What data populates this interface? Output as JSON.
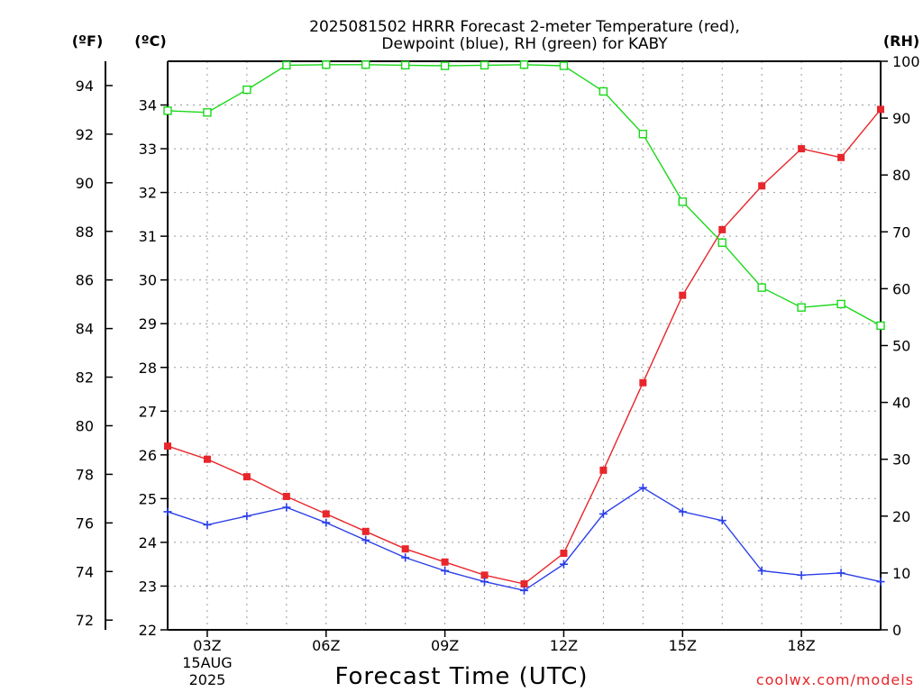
{
  "title_line1": "2025081502 HRRR Forecast 2-meter Temperature (red),",
  "title_line2": "Dewpoint (blue), RH (green) for KABY",
  "credit": "coolwx.com/models",
  "chart_data": {
    "type": "line",
    "title": "2025081502 HRRR Forecast 2-meter Temperature (red), Dewpoint (blue), RH (green) for KABY",
    "xlabel": "Forecast Time (UTC)",
    "x_hours": [
      2,
      3,
      4,
      5,
      6,
      7,
      8,
      9,
      10,
      11,
      12,
      13,
      14,
      15,
      16,
      17,
      18,
      19,
      20
    ],
    "xlim": [
      2,
      20
    ],
    "x_ticks": [
      {
        "hour": 3,
        "label": "03Z",
        "sub1": "15AUG",
        "sub2": "2025"
      },
      {
        "hour": 6,
        "label": "06Z"
      },
      {
        "hour": 9,
        "label": "09Z"
      },
      {
        "hour": 12,
        "label": "12Z"
      },
      {
        "hour": 15,
        "label": "15Z"
      },
      {
        "hour": 18,
        "label": "18Z"
      }
    ],
    "axes": {
      "fahrenheit": {
        "unit_label": "(ºF)",
        "ticks": [
          72,
          74,
          76,
          78,
          80,
          82,
          84,
          86,
          88,
          90,
          92,
          94
        ]
      },
      "celsius": {
        "unit_label": "(ºC)",
        "ticks": [
          22,
          23,
          24,
          25,
          26,
          27,
          28,
          29,
          30,
          31,
          32,
          33,
          34
        ],
        "ylim": [
          22,
          35
        ]
      },
      "rh": {
        "unit_label": "(RH)",
        "ticks": [
          0,
          10,
          20,
          30,
          40,
          50,
          60,
          70,
          80,
          90,
          100
        ],
        "ylim": [
          0,
          100
        ]
      }
    },
    "grid": true,
    "series": [
      {
        "name": "Temperature",
        "axis": "celsius",
        "color": "#e8262b",
        "marker": "filled-square",
        "values": [
          26.2,
          25.9,
          25.5,
          25.05,
          24.65,
          24.25,
          23.85,
          23.55,
          23.25,
          23.05,
          23.75,
          25.65,
          27.65,
          29.65,
          31.15,
          32.15,
          33.0,
          32.8,
          33.9
        ]
      },
      {
        "name": "Dewpoint",
        "axis": "celsius",
        "color": "#2a3ee8",
        "marker": "plus",
        "values": [
          24.7,
          24.4,
          24.6,
          24.8,
          24.45,
          24.05,
          23.65,
          23.35,
          23.1,
          22.9,
          23.5,
          24.65,
          25.25,
          24.7,
          24.5,
          23.35,
          23.25,
          23.3,
          23.1
        ]
      },
      {
        "name": "RH",
        "axis": "rh",
        "color": "#1ad81a",
        "marker": "open-square",
        "values": [
          91.3,
          91.0,
          95.0,
          99.3,
          99.4,
          99.4,
          99.3,
          99.2,
          99.3,
          99.4,
          99.2,
          94.7,
          87.2,
          75.3,
          68.1,
          60.2,
          56.7,
          57.3,
          53.5
        ]
      }
    ]
  }
}
